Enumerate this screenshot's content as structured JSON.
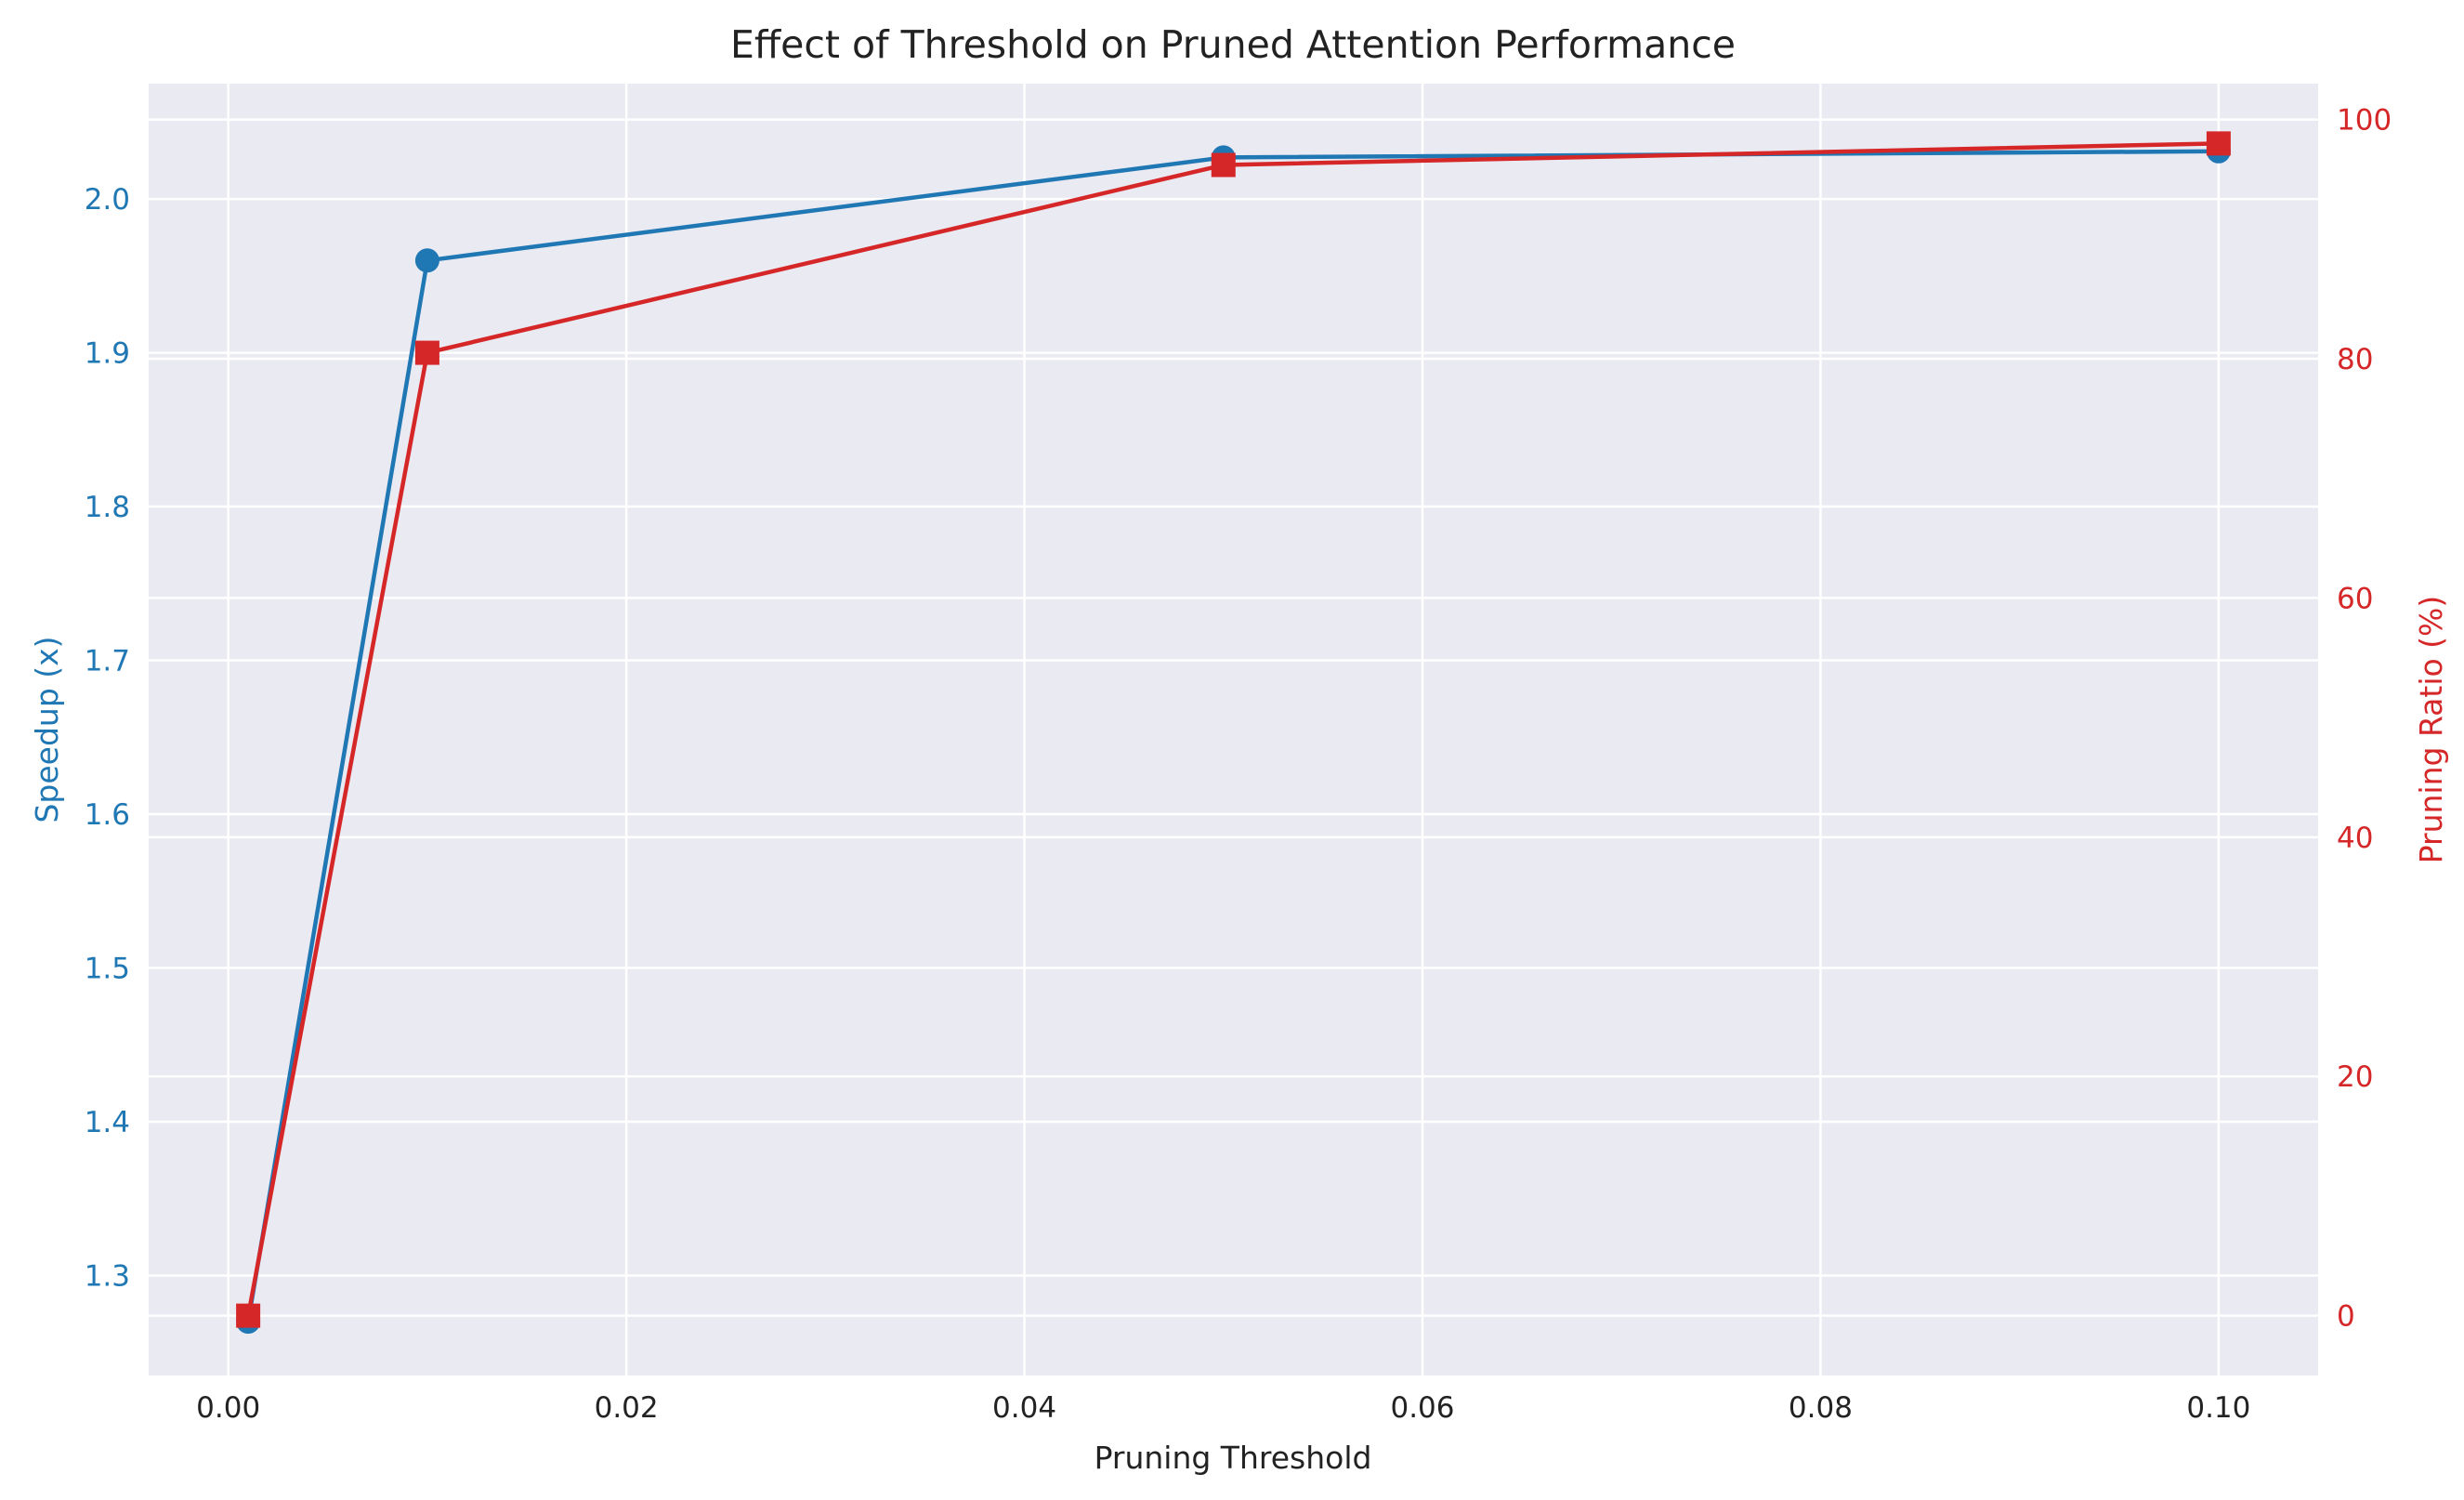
{
  "chart_data": {
    "type": "line",
    "title": "Effect of Threshold on Pruned Attention Performance",
    "xlabel": "Pruning Threshold",
    "ylabel": "Speedup (x)",
    "y2label": "Pruning Ratio (%)",
    "xlim": [
      -0.004,
      0.105
    ],
    "ylim": [
      1.235,
      2.075
    ],
    "y2lim": [
      -5,
      103
    ],
    "xticks": [
      "0.00",
      "0.02",
      "0.04",
      "0.06",
      "0.08",
      "0.10"
    ],
    "yticks": [
      "1.3",
      "1.4",
      "1.5",
      "1.6",
      "1.7",
      "1.8",
      "1.9",
      "2.0"
    ],
    "y2ticks": [
      "0",
      "20",
      "40",
      "60",
      "80",
      "100"
    ],
    "grid": true,
    "series": [
      {
        "axis": "left",
        "color": "#1f77b4",
        "marker": "circle",
        "x": [
          0.001,
          0.01,
          0.05,
          0.1
        ],
        "values": [
          1.27,
          1.96,
          2.027,
          2.031
        ]
      },
      {
        "axis": "right",
        "color": "#d62728",
        "marker": "square",
        "x": [
          0.001,
          0.01,
          0.05,
          0.1
        ],
        "values": [
          0,
          80.5,
          96.2,
          98.0
        ]
      }
    ],
    "colors": {
      "left_axis": "#1f77b4",
      "right_axis": "#d62728",
      "background": "#eaeaf2",
      "grid": "#ffffff"
    }
  }
}
